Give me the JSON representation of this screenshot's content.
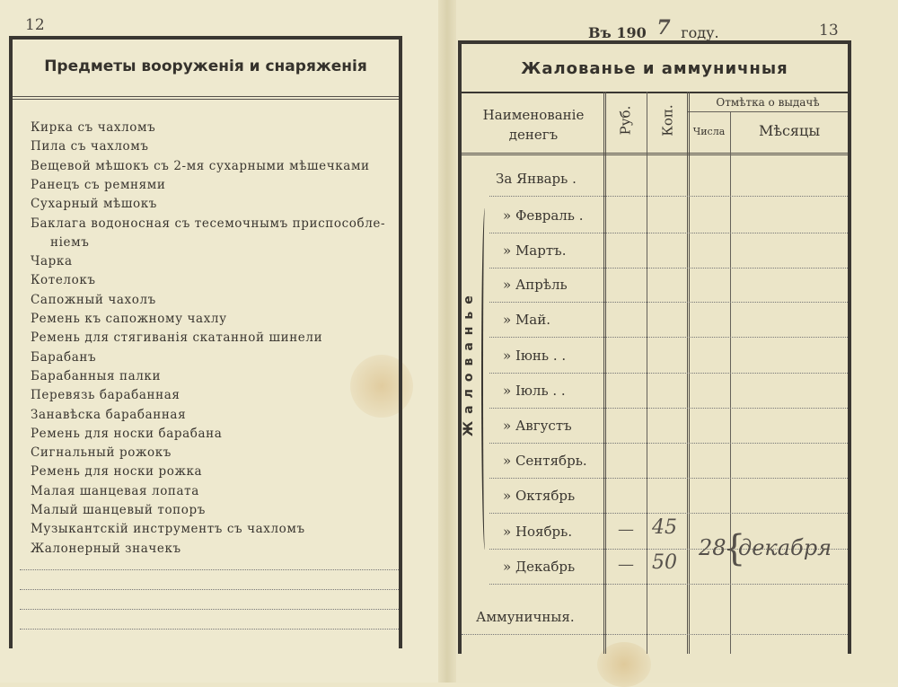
{
  "left_page": {
    "page_number": "12",
    "title": "Предметы вооруженія и снаряженія",
    "items": [
      "Кирка съ чахломъ",
      "Пила съ чахломъ",
      "Вещевой мѣшокъ съ 2-мя сухарными мѣшечками",
      "Ранецъ съ ремнями",
      "Сухарный мѣшокъ",
      "Баклага водоносная съ тесемочнымъ приспособле-",
      "ніемъ",
      "Чарка",
      "Котелокъ",
      "Сапожный чахолъ",
      "Ремень къ сапожному чахлу",
      "Ремень для стягиванія скатанной шинели",
      "Барабанъ",
      "Барабанныя палки",
      "Перевязь барабанная",
      "Занавѣска барабанная",
      "Ремень для носки барабана",
      "Сигнальный рожокъ",
      "Ремень для носки рожка",
      "Малая шанцевая лопата",
      "Малый шанцевый топоръ",
      "Музыкантскій инструментъ съ чахломъ",
      "Жалонерный значекъ"
    ]
  },
  "right_page": {
    "page_number": "13",
    "year_prefix": "Въ 190",
    "year_handwritten": "7",
    "year_suffix": "году.",
    "title": "Жалованье и аммуничныя",
    "headers": {
      "name": "Наименованіе денегъ",
      "rub": "Руб.",
      "kop": "Коп.",
      "issue_mark": "Отмѣтка о выдачѣ",
      "day": "Числа",
      "months": "Мѣсяцы"
    },
    "side_label": "Жалованье",
    "rows": [
      {
        "label": "За Январь ."
      },
      {
        "label": "» Февраль ."
      },
      {
        "label": "» Мартъ."
      },
      {
        "label": "» Апрѣль"
      },
      {
        "label": "» Май."
      },
      {
        "label": "» Іюнь . ."
      },
      {
        "label": "» Іюль . ."
      },
      {
        "label": "» Августъ"
      },
      {
        "label": "» Сентябрь."
      },
      {
        "label": "» Октябрь"
      },
      {
        "label": "» Ноябрь.",
        "rub": "—",
        "kop": "45"
      },
      {
        "label": "» Декабрь",
        "rub": "—",
        "kop": "50"
      },
      {
        "label": "Аммуничныя."
      }
    ],
    "handwritten_day": "28",
    "handwritten_month": "декабря"
  }
}
